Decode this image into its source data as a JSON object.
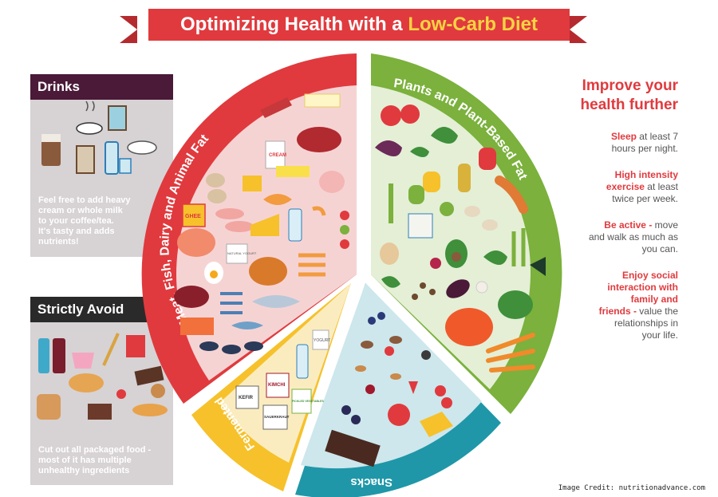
{
  "title": {
    "prefix": "Optimizing Health with a ",
    "highlight": "Low-Carb Diet"
  },
  "drinks_panel": {
    "heading": "Drinks",
    "text_lines": [
      "Feel free to add heavy",
      "cream or whole milk",
      "to your coffee/tea.",
      "It's tasty and adds",
      "nutrients!"
    ]
  },
  "avoid_panel": {
    "heading": "Strictly Avoid",
    "text_lines": [
      "Cut out all packaged food -",
      "most of it has multiple",
      "unhealthy ingredients"
    ]
  },
  "segments": {
    "meat": "Meat, Fish, Dairy and Animal Fat",
    "plants": "Plants and Plant-Based Fat",
    "snacks": "Snacks",
    "fermented": "Fermented"
  },
  "food_labels": {
    "ghee": "GHEE",
    "cream": "CREAM",
    "yogurt_natural": "NATURAL YOGURT",
    "yogurt": "YOGURT",
    "kefir": "KEFIR",
    "kimchi": "KIMCHI",
    "sauerkraut": "SAUERKRAUT",
    "pickled": "PICKLED VEGETABLES"
  },
  "right_column": {
    "title_lines": [
      "Improve your",
      "health further"
    ],
    "tips": [
      {
        "em": "Sleep",
        "rest": " at least 7 hours per night."
      },
      {
        "em": "High intensity exercise",
        "rest": " at least twice per week."
      },
      {
        "em": "Be active -",
        "rest": " move and walk as much as you can."
      },
      {
        "em": "Enjoy social interaction with family and friends -",
        "rest": " value the relationships in your life."
      }
    ]
  },
  "credit": "Image Credit: nutritionadvance.com",
  "colors": {
    "red": "#e03a3e",
    "green": "#7bb13c",
    "teal": "#1f97a8",
    "yellow": "#f6c12b",
    "plum": "#4a1a38"
  }
}
